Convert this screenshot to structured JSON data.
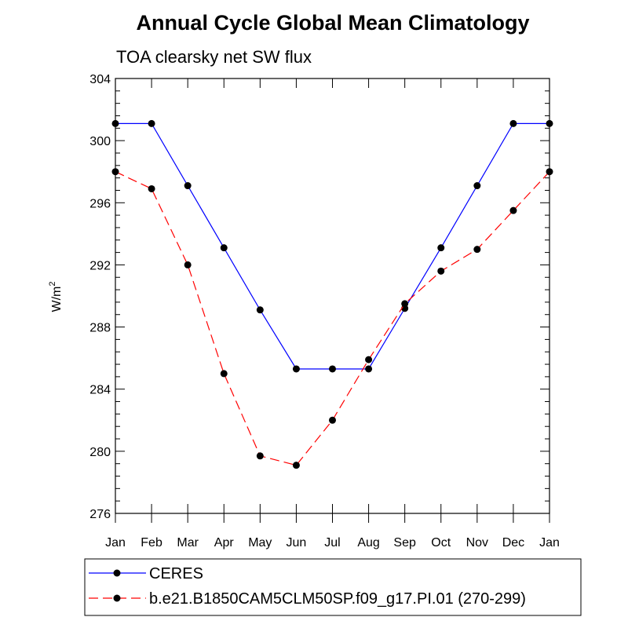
{
  "chart_data": {
    "type": "line",
    "title": "Annual Cycle Global Mean Climatology",
    "subtitle": "TOA clearsky net SW flux",
    "xlabel": "",
    "ylabel": "W/m",
    "ylabel_superscript": "2",
    "categories": [
      "Jan",
      "Feb",
      "Mar",
      "Apr",
      "May",
      "Jun",
      "Jul",
      "Aug",
      "Sep",
      "Oct",
      "Nov",
      "Dec",
      "Jan"
    ],
    "ylim": [
      276,
      304
    ],
    "yticks": [
      "276",
      "280",
      "284",
      "288",
      "292",
      "296",
      "300",
      "304"
    ],
    "grid": false,
    "legend_position": "bottom",
    "series": [
      {
        "name": "CERES",
        "color": "#0000ff",
        "dash": "solid",
        "values": [
          301.1,
          301.1,
          297.1,
          293.1,
          289.1,
          285.3,
          285.3,
          285.3,
          289.2,
          293.1,
          297.1,
          301.1,
          301.1
        ]
      },
      {
        "name": "b.e21.B1850CAM5CLM50SP.f09_g17.PI.01 (270-299)",
        "color": "#ff0000",
        "dash": "dashed",
        "values": [
          298.0,
          296.9,
          292.0,
          285.0,
          279.7,
          279.1,
          282.0,
          285.9,
          289.5,
          291.6,
          293.0,
          295.5,
          298.0
        ]
      }
    ]
  }
}
